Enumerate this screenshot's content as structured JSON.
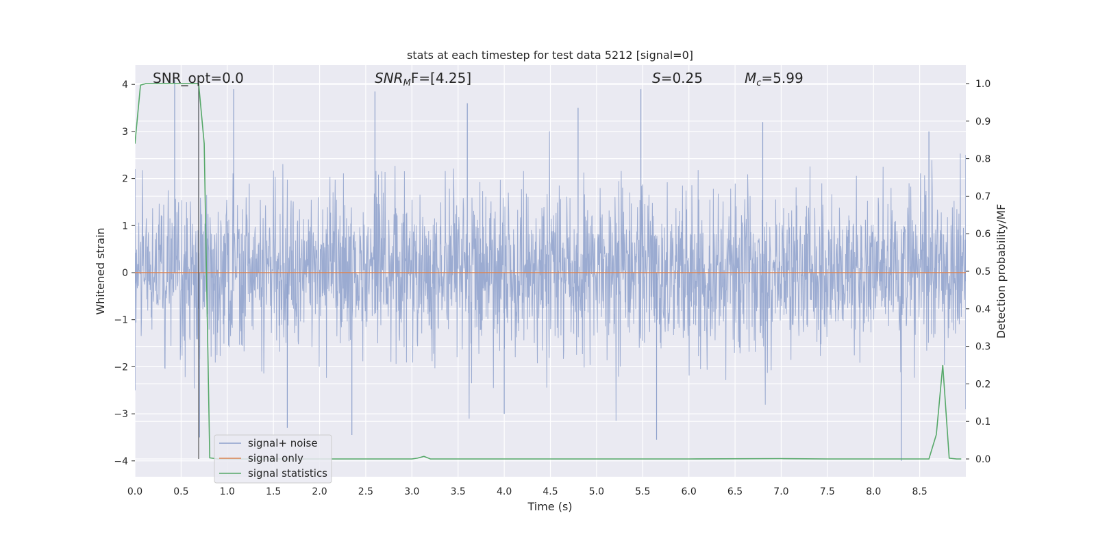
{
  "chart_data": {
    "type": "line",
    "title": "stats at each timestep for test data 5212 [signal=0]",
    "xlabel": "Time (s)",
    "ylabel": "Whitened strain",
    "ylabel_right": "Detection probability/MF",
    "xlim": [
      0.0,
      9.0
    ],
    "ylim": [
      -4.4,
      4.4
    ],
    "ylim_right": [
      -0.05,
      1.05
    ],
    "xticks": [
      "0.0",
      "0.5",
      "1.0",
      "1.5",
      "2.0",
      "2.5",
      "3.0",
      "3.5",
      "4.0",
      "4.5",
      "5.0",
      "5.5",
      "6.0",
      "6.5",
      "7.0",
      "7.5",
      "8.0",
      "8.5"
    ],
    "xtick_values": [
      0,
      0.5,
      1,
      1.5,
      2,
      2.5,
      3,
      3.5,
      4,
      4.5,
      5,
      5.5,
      6,
      6.5,
      7,
      7.5,
      8,
      8.5
    ],
    "yticks": [
      "−4",
      "−3",
      "−2",
      "−1",
      "0",
      "1",
      "2",
      "3",
      "4"
    ],
    "ytick_values": [
      -4,
      -3,
      -2,
      -1,
      0,
      1,
      2,
      3,
      4
    ],
    "yticks_right": [
      "0.0",
      "0.1",
      "0.2",
      "0.3",
      "0.4",
      "0.5",
      "0.6",
      "0.7",
      "0.8",
      "0.9",
      "1.0"
    ],
    "ytick_right_values": [
      0,
      0.1,
      0.2,
      0.3,
      0.4,
      0.5,
      0.6,
      0.7,
      0.8,
      0.9,
      1.0
    ],
    "grid": true,
    "legend_position": "lower-left",
    "annotations": {
      "snr_opt": "SNR_opt=0.0",
      "snr_mf_base": "SNR",
      "snr_mf_sub": "M",
      "snr_mf_rest": "F=[4.25]",
      "s_label": "S",
      "s_rest": "=0.25",
      "mc_base": "M",
      "mc_sub": "c",
      "mc_rest": "=5.99"
    },
    "marker_line_x": 0.69,
    "series": [
      {
        "name": "signal+ noise",
        "color": "#8da0cb",
        "description_values": "whitened strain noise, roughly Gaussian, peaks up to about 4 and down to about -4",
        "envelope_upper": [
          [
            0.0,
            2.2
          ],
          [
            0.43,
            4.1
          ],
          [
            0.69,
            4.0
          ],
          [
            1.07,
            3.9
          ],
          [
            2.6,
            3.85
          ],
          [
            3.6,
            3.6
          ],
          [
            4.8,
            3.5
          ],
          [
            5.48,
            3.9
          ],
          [
            6.8,
            3.2
          ],
          [
            8.6,
            3.0
          ],
          [
            9.0,
            2.5
          ]
        ],
        "envelope_lower": [
          [
            0.0,
            -2.5
          ],
          [
            0.7,
            -3.5
          ],
          [
            1.65,
            -3.3
          ],
          [
            2.35,
            -3.45
          ],
          [
            4.0,
            -3.0
          ],
          [
            5.65,
            -3.55
          ],
          [
            8.3,
            -4.0
          ],
          [
            9.0,
            -2.9
          ]
        ]
      },
      {
        "name": "signal only",
        "color": "#dd8452",
        "x": [
          0.0,
          9.0
        ],
        "y": [
          0.0,
          0.0
        ]
      },
      {
        "name": "signal statistics",
        "color": "#55a868",
        "axis": "right",
        "x": [
          0.0,
          0.06,
          0.12,
          0.2,
          0.3,
          0.4,
          0.5,
          0.6,
          0.69,
          0.75,
          0.81,
          0.9,
          1.0,
          1.5,
          2.0,
          2.5,
          3.0,
          3.06,
          3.13,
          3.2,
          3.3,
          4.0,
          5.0,
          6.0,
          7.0,
          7.5,
          8.0,
          8.5,
          8.6,
          8.68,
          8.75,
          8.82,
          8.9,
          8.95
        ],
        "y": [
          0.84,
          0.996,
          1.0,
          1.0,
          1.0,
          1.0,
          1.0,
          1.0,
          1.0,
          0.84,
          0.003,
          0.0,
          0.0,
          0.0,
          0.0,
          0.0,
          0.0,
          0.002,
          0.007,
          0.0,
          0.0,
          0.0,
          0.0,
          0.0,
          0.001,
          0.0,
          0.0,
          0.0,
          0.0,
          0.065,
          0.25,
          0.002,
          0.0,
          0.0
        ]
      }
    ]
  }
}
